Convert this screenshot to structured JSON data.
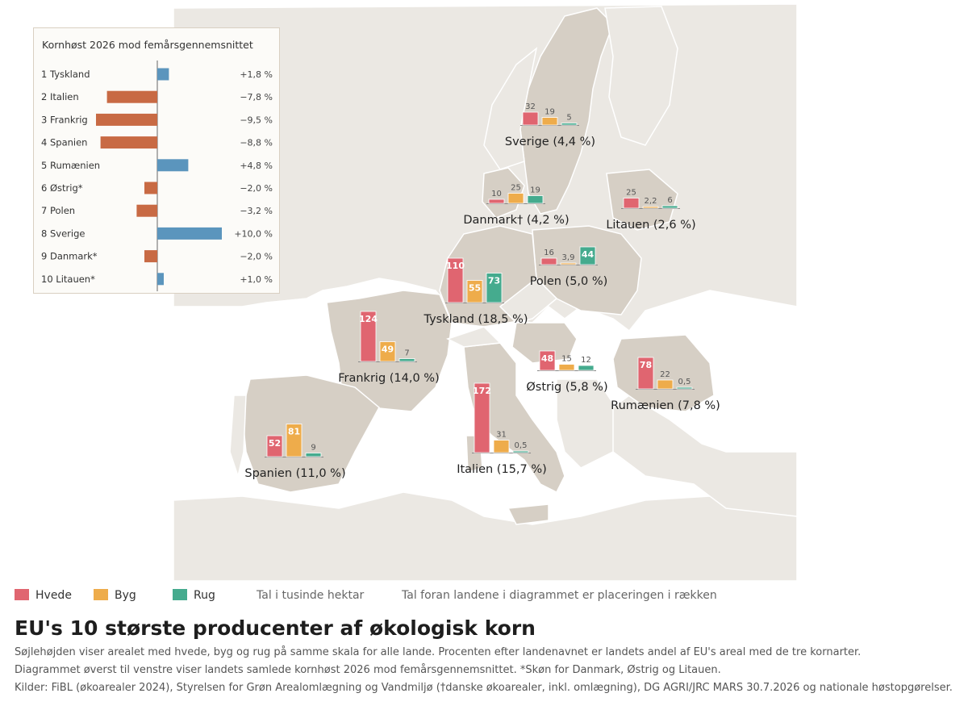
{
  "inset": {
    "title": "Kornhøst 2026 mod femårsgennemsnittet",
    "axis_min": -12,
    "axis_max": 12,
    "rows": [
      {
        "label": "1 Tyskland",
        "value": 1.8,
        "text": "+1,8 %"
      },
      {
        "label": "2 Italien",
        "value": -7.8,
        "text": "−7,8 %"
      },
      {
        "label": "3 Frankrig",
        "value": -9.5,
        "text": "−9,5 %"
      },
      {
        "label": "4 Spanien",
        "value": -8.8,
        "text": "−8,8 %"
      },
      {
        "label": "5 Rumænien",
        "value": 4.8,
        "text": "+4,8 %"
      },
      {
        "label": "6 Østrig*",
        "value": -2.0,
        "text": "−2,0 %"
      },
      {
        "label": "7 Polen",
        "value": -3.2,
        "text": "−3,2 %"
      },
      {
        "label": "8 Sverige",
        "value": 10.0,
        "text": "+10,0 %"
      },
      {
        "label": "9 Danmark*",
        "value": -2.0,
        "text": "−2,0 %"
      },
      {
        "label": "10 Litauen*",
        "value": 1.0,
        "text": "+1,0 %"
      }
    ],
    "colors": {
      "positive": "#5b95bd",
      "negative": "#c86a44"
    }
  },
  "countries": [
    {
      "label": "Sverige (4,4 %)",
      "hvede": 32,
      "byg": 19,
      "rug": 5,
      "hvede_label": "32",
      "byg_label": "19",
      "rug_label": "5"
    },
    {
      "label": "Danmark† (4,2 %)",
      "hvede": 10,
      "byg": 25,
      "rug": 19,
      "hvede_label": "10",
      "byg_label": "25",
      "rug_label": "19"
    },
    {
      "label": "Litauen (2,6 %)",
      "hvede": 25,
      "byg": 2.2,
      "rug": 6,
      "hvede_label": "25",
      "byg_label": "2,2",
      "rug_label": "6"
    },
    {
      "label": "Polen (5,0 %)",
      "hvede": 16,
      "byg": 3.9,
      "rug": 44,
      "hvede_label": "16",
      "byg_label": "3,9",
      "rug_label": "44"
    },
    {
      "label": "Tyskland (18,5 %)",
      "hvede": 110,
      "byg": 55,
      "rug": 73,
      "hvede_label": "110",
      "byg_label": "55",
      "rug_label": "73"
    },
    {
      "label": "Frankrig (14,0 %)",
      "hvede": 124,
      "byg": 49,
      "rug": 7,
      "hvede_label": "124",
      "byg_label": "49",
      "rug_label": "7"
    },
    {
      "label": "Østrig (5,8 %)",
      "hvede": 48,
      "byg": 15,
      "rug": 12,
      "hvede_label": "48",
      "byg_label": "15",
      "rug_label": "12"
    },
    {
      "label": "Rumænien (7,8 %)",
      "hvede": 78,
      "byg": 22,
      "rug": 0.5,
      "hvede_label": "78",
      "byg_label": "22",
      "rug_label": "0,5"
    },
    {
      "label": "Spanien (11,0 %)",
      "hvede": 52,
      "byg": 81,
      "rug": 9,
      "hvede_label": "52",
      "byg_label": "81",
      "rug_label": "9"
    },
    {
      "label": "Italien (15,7 %)",
      "hvede": 172,
      "byg": 31,
      "rug": 0.5,
      "hvede_label": "172",
      "byg_label": "31",
      "rug_label": "0,5"
    }
  ],
  "colors": {
    "hvede": "#e06570",
    "byg": "#eeac4b",
    "rug": "#45ab8e",
    "land_focus": "#d6cfc5",
    "land_other": "#ebe8e3",
    "sea": "#ffffff",
    "border": "#ffffff"
  },
  "legend": {
    "hvede": "Hvede",
    "byg": "Byg",
    "rug": "Rug",
    "unit_note": "Tal i tusinde hektar",
    "rank_note": "Tal foran landene i diagrammet er placeringen i rækken"
  },
  "headline": "EU's 10 største producenter af økologisk korn",
  "description": [
    "Søjlehøjden viser arealet med hvede, byg og rug på samme skala for alle lande. Procenten efter landenavnet er landets andel af EU's areal med de tre kornarter.",
    "Diagrammet øverst til venstre viser landets samlede kornhøst 2026 mod femårsgennemsnittet. *Skøn for Danmark, Østrig og Litauen.",
    "Kilder: FiBL (økoarealer 2024), Styrelsen for Grøn Arealomlægning og Vandmiljø (†danske økoarealer, inkl. omlægning), DG AGRI/JRC MARS 30.7.2026 og nationale høstopgørelser."
  ]
}
